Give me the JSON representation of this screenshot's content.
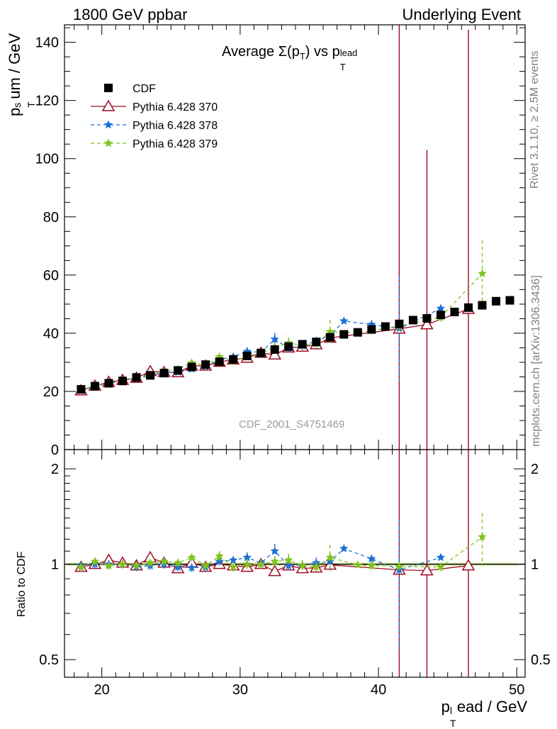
{
  "header": {
    "left": "1800 GeV ppbar",
    "right": "Underlying Event"
  },
  "side": {
    "rivet": "Rivet 3.1.10, ≥ 2.5M events",
    "mcplots": "mcplots.cern.ch [arXiv:1306.3436]"
  },
  "chart_data": [
    {
      "type": "scatter",
      "title_main": "Average Σ(p",
      "title_sub_t": "T",
      "title_mid": ") vs p",
      "title_sup": "lead",
      "title_sub_t2": "T",
      "ylabel_p": "p",
      "ylabel_sup": "s",
      "ylabel_sub": "T",
      "ylabel_rest": "um / GeV",
      "watermark": "CDF_2001_S4751469",
      "xlim": [
        17.3,
        50.6
      ],
      "ylim": [
        0,
        146
      ],
      "xticks": [
        20,
        30,
        40,
        50
      ],
      "yticks": [
        0,
        20,
        40,
        60,
        80,
        100,
        120,
        140
      ],
      "legend_position": "top-left",
      "legend": [
        "CDF",
        "Pythia 6.428 370",
        "Pythia 6.428 378",
        "Pythia 6.428 379"
      ],
      "series": [
        {
          "name": "CDF",
          "color": "#000000",
          "marker": "square",
          "x": [
            18.5,
            19.5,
            20.5,
            21.5,
            22.5,
            23.5,
            24.5,
            25.5,
            26.5,
            27.5,
            28.5,
            29.5,
            30.5,
            31.5,
            32.5,
            33.5,
            34.5,
            35.5,
            36.5,
            37.5,
            38.5,
            39.5,
            40.5,
            41.5,
            42.5,
            43.5,
            44.5,
            45.5,
            46.5,
            47.5,
            48.5,
            49.5
          ],
          "y": [
            20.7,
            21.8,
            22.8,
            23.6,
            24.8,
            25.5,
            26.3,
            27.2,
            28.4,
            29.2,
            30.2,
            31.0,
            32.2,
            33.2,
            34.4,
            35.4,
            36.2,
            37.0,
            38.6,
            39.6,
            40.3,
            41.3,
            42.3,
            43.2,
            44.5,
            45.1,
            46.3,
            47.3,
            48.8,
            49.6,
            51.0,
            51.3
          ]
        },
        {
          "name": "Pythia 6.428 370",
          "color": "#9e0a23",
          "marker": "triangle-open",
          "line": "solid",
          "x": [
            18.5,
            19.5,
            20.5,
            21.5,
            22.5,
            23.5,
            24.5,
            25.5,
            26.5,
            27.5,
            28.5,
            29.5,
            30.5,
            31.5,
            32.5,
            33.5,
            34.5,
            35.5,
            36.5,
            41.5,
            43.5,
            46.5
          ],
          "y": [
            20.3,
            21.9,
            23.2,
            23.9,
            24.6,
            26.9,
            26.6,
            26.5,
            28.8,
            28.8,
            30.1,
            30.9,
            31.5,
            33.2,
            32.6,
            35.0,
            35.3,
            36.1,
            38.4,
            41.5,
            43.0,
            48.3
          ],
          "err": [
            1.0,
            0.8,
            0.8,
            0.8,
            0.8,
            1.0,
            0.8,
            0.8,
            1.0,
            0.8,
            0.8,
            0.8,
            1.0,
            1.0,
            1.0,
            1.0,
            1.0,
            1.0,
            1.0,
            105,
            60,
            96
          ]
        },
        {
          "name": "Pythia 6.428 378",
          "color": "#1a6fd6",
          "marker": "star",
          "line": "dashed",
          "x": [
            18.5,
            19.5,
            20.5,
            21.5,
            22.5,
            23.5,
            24.5,
            25.5,
            26.5,
            27.5,
            28.5,
            29.5,
            30.5,
            31.5,
            32.5,
            33.5,
            34.5,
            35.5,
            36.5,
            37.5,
            39.5,
            41.5,
            44.5
          ],
          "y": [
            20.5,
            21.7,
            22.9,
            23.7,
            24.4,
            25.3,
            26.5,
            26.6,
            27.7,
            28.6,
            30.9,
            31.9,
            33.7,
            33.5,
            37.9,
            34.9,
            35.7,
            37.3,
            39.2,
            44.2,
            43.0,
            41.6,
            48.5
          ],
          "err": [
            0.8,
            0.8,
            0.8,
            0.8,
            0.8,
            0.8,
            0.8,
            0.8,
            0.8,
            0.8,
            1.0,
            1.0,
            1.5,
            1.2,
            2.2,
            1.5,
            1.5,
            1.5,
            2.0,
            1.0,
            1.5,
            18,
            1.0
          ]
        },
        {
          "name": "Pythia 6.428 379",
          "color": "#7fc31c",
          "marker": "star",
          "line": "dashed",
          "x": [
            18.5,
            19.5,
            20.5,
            21.5,
            22.5,
            23.5,
            24.5,
            25.5,
            26.5,
            27.5,
            28.5,
            29.5,
            30.5,
            31.5,
            32.5,
            33.5,
            34.5,
            35.5,
            36.5,
            38.5,
            39.5,
            41.5,
            44.5,
            47.5
          ],
          "y": [
            20.3,
            22.2,
            22.6,
            23.7,
            24.6,
            25.8,
            26.9,
            27.6,
            29.8,
            29.0,
            31.9,
            30.4,
            32.1,
            33.1,
            35.2,
            36.6,
            35.9,
            36.4,
            40.5,
            40.1,
            40.9,
            42.5,
            45.5,
            60.5
          ],
          "err": [
            0.8,
            0.8,
            0.8,
            0.8,
            0.8,
            0.8,
            0.8,
            0.8,
            1.0,
            0.8,
            1.2,
            1.2,
            1.2,
            1.2,
            1.5,
            2.0,
            1.5,
            1.5,
            4.0,
            1.0,
            1.2,
            1.5,
            1.5,
            11.5
          ]
        }
      ]
    },
    {
      "type": "scatter",
      "ylabel": "Ratio to CDF",
      "xlabel_p": "p",
      "xlabel_sup": "l",
      "xlabel_sub": "T",
      "xlabel_rest": "ead / GeV",
      "log_y": true,
      "xlim": [
        17.3,
        50.6
      ],
      "ylim": [
        0.44,
        2.3
      ],
      "xticks": [
        20,
        30,
        40,
        50
      ],
      "yticks": [
        0.5,
        1,
        2
      ],
      "ytick_labels": [
        "0.5",
        "1",
        "2"
      ],
      "band_color": "#e8f7c6",
      "series": [
        {
          "name": "Pythia 6.428 370",
          "color": "#9e0a23",
          "x": [
            18.5,
            19.5,
            20.5,
            21.5,
            22.5,
            23.5,
            24.5,
            25.5,
            26.5,
            27.5,
            28.5,
            29.5,
            30.5,
            31.5,
            32.5,
            33.5,
            34.5,
            35.5,
            36.5,
            41.5,
            43.5,
            46.5
          ],
          "y": [
            0.98,
            1.0,
            1.03,
            1.01,
            0.99,
            1.05,
            1.01,
            0.97,
            1.01,
            0.98,
            1.0,
            0.99,
            0.98,
            1.0,
            0.95,
            0.99,
            0.97,
            0.975,
            0.995,
            0.96,
            0.955,
            0.99
          ],
          "err": [
            0.03,
            0.03,
            0.03,
            0.03,
            0.03,
            0.03,
            0.03,
            0.03,
            0.04,
            0.03,
            0.03,
            0.03,
            0.03,
            0.03,
            0.03,
            0.03,
            0.03,
            0.03,
            0.03,
            2.3,
            2.0,
            2.0
          ]
        },
        {
          "name": "Pythia 6.428 378",
          "color": "#1a6fd6",
          "x": [
            18.5,
            19.5,
            20.5,
            21.5,
            22.5,
            23.5,
            24.5,
            25.5,
            26.5,
            27.5,
            28.5,
            29.5,
            30.5,
            31.5,
            32.5,
            33.5,
            34.5,
            35.5,
            36.5,
            37.5,
            39.5,
            41.5,
            44.5
          ],
          "y": [
            0.99,
            1.0,
            1.0,
            1.0,
            0.98,
            0.99,
            1.0,
            0.98,
            0.975,
            0.98,
            1.02,
            1.03,
            1.05,
            1.01,
            1.1,
            0.99,
            0.99,
            1.01,
            1.02,
            1.12,
            1.04,
            0.96,
            1.05
          ],
          "err": [
            0.03,
            0.03,
            0.03,
            0.03,
            0.03,
            0.03,
            0.03,
            0.03,
            0.03,
            0.03,
            0.03,
            0.03,
            0.04,
            0.03,
            0.06,
            0.04,
            0.04,
            0.04,
            0.05,
            0.02,
            0.03,
            0.42,
            0.02
          ]
        },
        {
          "name": "Pythia 6.428 379",
          "color": "#7fc31c",
          "x": [
            18.5,
            19.5,
            20.5,
            21.5,
            22.5,
            23.5,
            24.5,
            25.5,
            26.5,
            27.5,
            28.5,
            29.5,
            30.5,
            31.5,
            32.5,
            33.5,
            34.5,
            35.5,
            36.5,
            38.5,
            39.5,
            41.5,
            44.5,
            47.5
          ],
          "y": [
            0.98,
            1.02,
            0.99,
            1.0,
            0.99,
            1.01,
            1.02,
            1.01,
            1.05,
            0.99,
            1.06,
            0.98,
            1.0,
            1.0,
            1.02,
            1.03,
            0.99,
            0.98,
            1.05,
            0.995,
            0.99,
            0.985,
            0.98,
            1.22
          ],
          "err": [
            0.03,
            0.03,
            0.03,
            0.03,
            0.03,
            0.03,
            0.03,
            0.03,
            0.03,
            0.03,
            0.04,
            0.04,
            0.04,
            0.04,
            0.04,
            0.05,
            0.04,
            0.04,
            0.1,
            0.02,
            0.03,
            0.03,
            0.03,
            0.23
          ]
        }
      ]
    }
  ]
}
